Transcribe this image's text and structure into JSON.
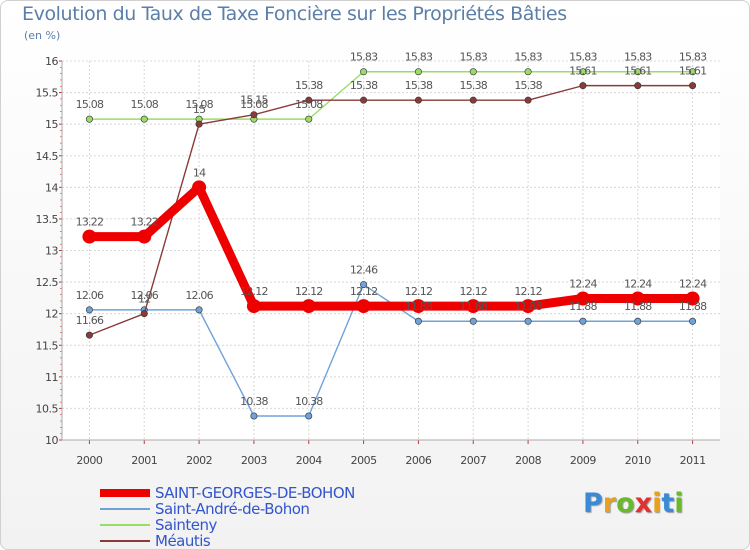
{
  "chart_data": {
    "type": "line",
    "title": "Evolution du Taux de Taxe Foncière sur les Propriétés Bâties",
    "ylabel": "(en %)",
    "xlabel": "",
    "categories": [
      "2000",
      "2001",
      "2002",
      "2003",
      "2004",
      "2005",
      "2006",
      "2007",
      "2008",
      "2009",
      "2010",
      "2011"
    ],
    "ylim": [
      10,
      16
    ],
    "yticks": [
      "10",
      "10.5",
      "11",
      "11.5",
      "12",
      "12.5",
      "13",
      "13.5",
      "14",
      "14.5",
      "15",
      "15.5",
      "16"
    ],
    "grid": true,
    "series": [
      {
        "name": "SAINT-GEORGES-DE-BOHON",
        "color": "#ee0000",
        "thick": true,
        "values": [
          13.22,
          13.22,
          14,
          12.12,
          12.12,
          12.12,
          12.12,
          12.12,
          12.12,
          12.24,
          12.24,
          12.24
        ],
        "labels": [
          "13.22",
          "13.22",
          "14",
          "12.12",
          "12.12",
          "12.12",
          "12.12",
          "12.12",
          "12.12",
          "12.24",
          "12.24",
          "12.24"
        ]
      },
      {
        "name": "Saint-André-de-Bohon",
        "color": "#6fa3d8",
        "thick": false,
        "values": [
          12.06,
          12.06,
          12.06,
          10.38,
          10.38,
          12.46,
          11.88,
          11.88,
          11.88,
          11.88,
          11.88,
          11.88
        ],
        "labels": [
          "12.06",
          "12.06",
          "12.06",
          "10.38",
          "10.38",
          "12.46",
          "11.88",
          "11.88",
          "11.88",
          "11.88",
          "11.88",
          "11.88"
        ]
      },
      {
        "name": "Sainteny",
        "color": "#99dd66",
        "thick": false,
        "values": [
          15.08,
          15.08,
          15.08,
          15.08,
          15.08,
          15.83,
          15.83,
          15.83,
          15.83,
          15.83,
          15.83,
          15.83
        ],
        "labels": [
          "15.08",
          "15.08",
          "15.08",
          "15.08",
          "15.08",
          "15.83",
          "15.83",
          "15.83",
          "15.83",
          "15.83",
          "15.83",
          "15.83"
        ]
      },
      {
        "name": "Méautis",
        "color": "#8b3a3a",
        "thick": false,
        "values": [
          11.66,
          12,
          15,
          15.15,
          15.38,
          15.38,
          15.38,
          15.38,
          15.38,
          15.61,
          15.61,
          15.61
        ],
        "labels": [
          "11.66",
          "12",
          "15",
          "15.15",
          "15.38",
          "15.38",
          "15.38",
          "15.38",
          "15.38",
          "15.61",
          "15.61",
          "15.61"
        ]
      }
    ]
  },
  "logo": {
    "letters": [
      "P",
      "r",
      "o",
      "x",
      "i",
      "t",
      "i"
    ],
    "colors": [
      "#3a8ad6",
      "#e8a020",
      "#6ab82e",
      "#e03030",
      "#e8a020",
      "#3a8ad6",
      "#6ab82e"
    ]
  }
}
